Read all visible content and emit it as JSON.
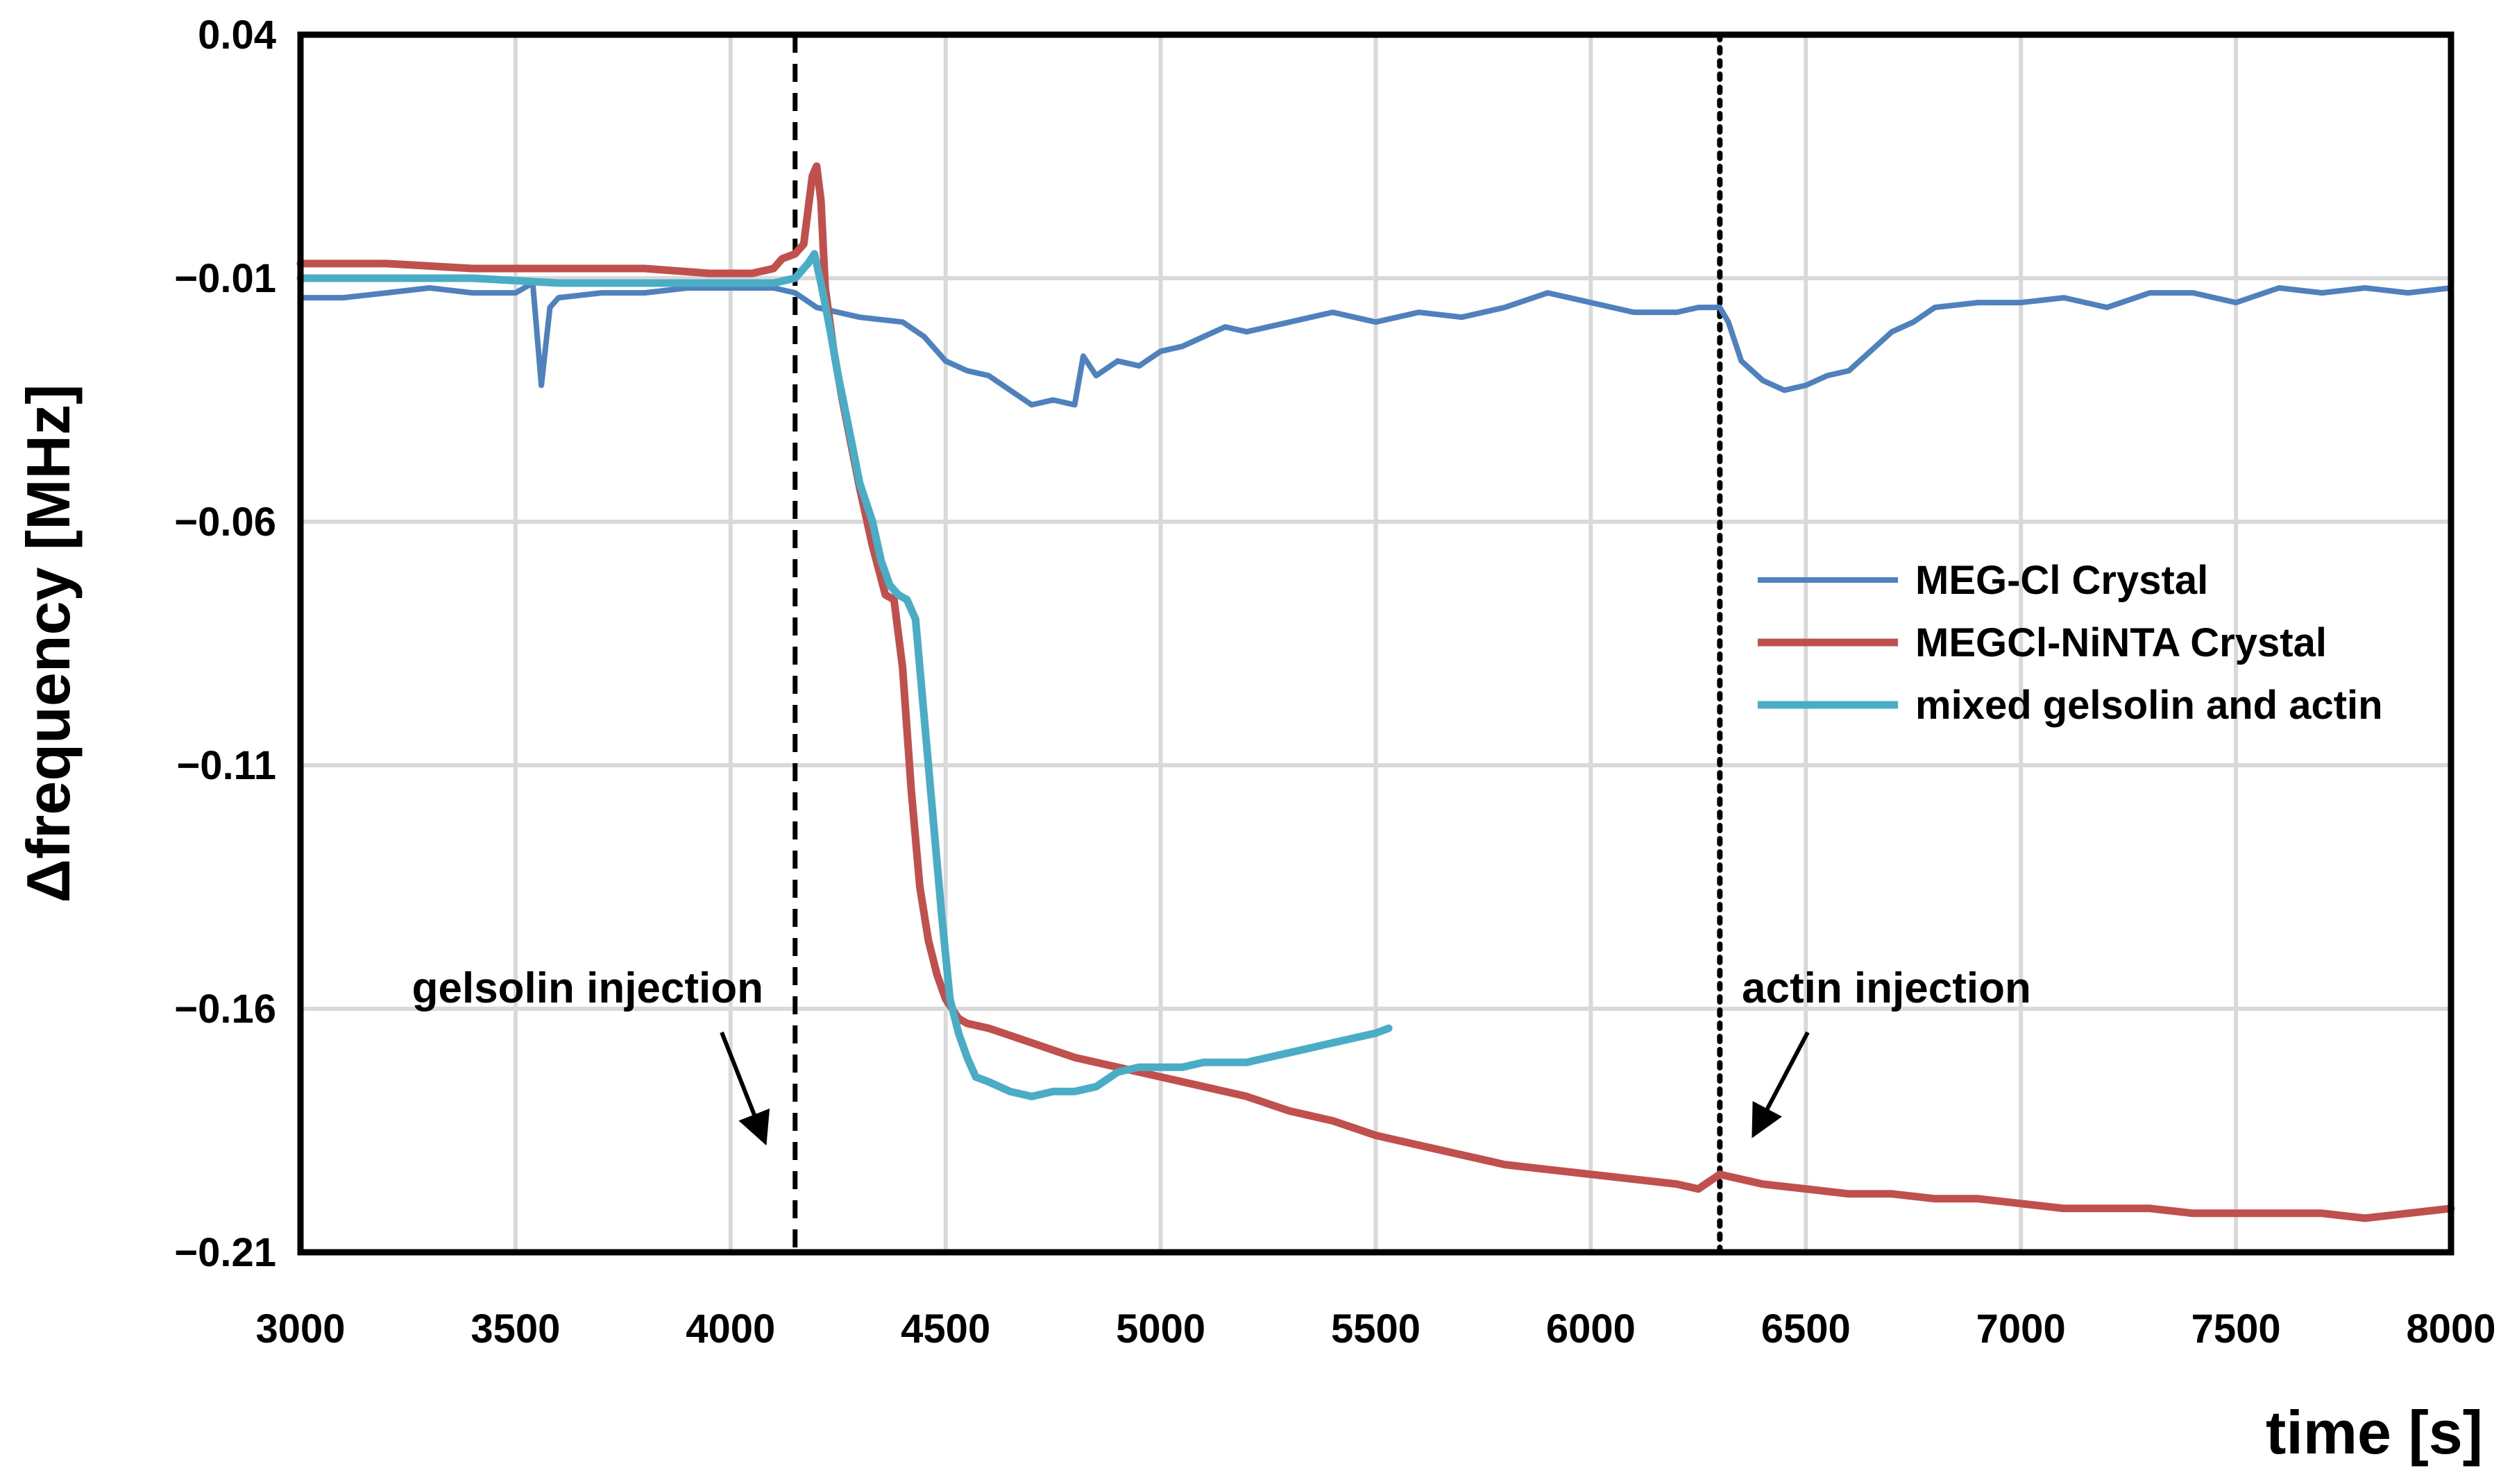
{
  "chart_data": {
    "type": "line",
    "title": "",
    "xlabel": "time [s]",
    "ylabel": "Δfrequency [MHz]",
    "xlim": [
      3000,
      8000
    ],
    "ylim": [
      -0.21,
      0.04
    ],
    "xticks": [
      3000,
      3500,
      4000,
      4500,
      5000,
      5500,
      6000,
      6500,
      7000,
      7500,
      8000
    ],
    "xtick_labels": [
      "3000",
      "3500",
      "4000",
      "4500",
      "5000",
      "5500",
      "6000",
      "6500",
      "7000",
      "7500",
      "8000"
    ],
    "yticks": [
      0.04,
      -0.01,
      -0.06,
      -0.11,
      -0.16,
      -0.21
    ],
    "ytick_labels": [
      "0.04",
      "-0.01",
      "-0.06",
      "-0.11",
      "-0.16",
      "-0.21"
    ],
    "grid": true,
    "legend_position": "center-right",
    "series": [
      {
        "name": "MEG-Cl Crystal",
        "color": "#4F81BD",
        "x": [
          3000,
          3100,
          3200,
          3300,
          3400,
          3500,
          3540,
          3560,
          3580,
          3600,
          3700,
          3800,
          3900,
          4000,
          4100,
          4150,
          4200,
          4300,
          4400,
          4450,
          4500,
          4550,
          4600,
          4650,
          4700,
          4750,
          4800,
          4820,
          4850,
          4900,
          4950,
          5000,
          5050,
          5100,
          5150,
          5200,
          5300,
          5400,
          5450,
          5500,
          5550,
          5600,
          5700,
          5800,
          5900,
          6000,
          6100,
          6200,
          6250,
          6300,
          6320,
          6350,
          6400,
          6450,
          6500,
          6550,
          6600,
          6650,
          6700,
          6750,
          6800,
          6900,
          7000,
          7100,
          7200,
          7300,
          7400,
          7500,
          7600,
          7700,
          7800,
          7900,
          8000
        ],
        "values": [
          -0.014,
          -0.014,
          -0.013,
          -0.012,
          -0.013,
          -0.013,
          -0.011,
          -0.032,
          -0.016,
          -0.014,
          -0.013,
          -0.013,
          -0.012,
          -0.012,
          -0.012,
          -0.013,
          -0.016,
          -0.018,
          -0.019,
          -0.022,
          -0.027,
          -0.029,
          -0.03,
          -0.033,
          -0.036,
          -0.035,
          -0.036,
          -0.026,
          -0.03,
          -0.027,
          -0.028,
          -0.025,
          -0.024,
          -0.022,
          -0.02,
          -0.021,
          -0.019,
          -0.017,
          -0.018,
          -0.019,
          -0.018,
          -0.017,
          -0.018,
          -0.016,
          -0.013,
          -0.015,
          -0.017,
          -0.017,
          -0.016,
          -0.016,
          -0.019,
          -0.027,
          -0.031,
          -0.033,
          -0.032,
          -0.03,
          -0.029,
          -0.025,
          -0.021,
          -0.019,
          -0.016,
          -0.015,
          -0.015,
          -0.014,
          -0.016,
          -0.013,
          -0.013,
          -0.015,
          -0.012,
          -0.013,
          -0.012,
          -0.013,
          -0.012
        ]
      },
      {
        "name": "MEGCl-NiNTA Crystal",
        "color": "#C0504D",
        "x": [
          3000,
          3200,
          3400,
          3600,
          3800,
          3950,
          4050,
          4100,
          4120,
          4150,
          4170,
          4190,
          4200,
          4210,
          4220,
          4240,
          4260,
          4280,
          4300,
          4330,
          4360,
          4380,
          4400,
          4420,
          4440,
          4460,
          4480,
          4500,
          4530,
          4550,
          4600,
          4700,
          4800,
          4900,
          5000,
          5100,
          5200,
          5300,
          5400,
          5500,
          5600,
          5700,
          5800,
          5900,
          6000,
          6100,
          6200,
          6250,
          6300,
          6400,
          6500,
          6600,
          6700,
          6800,
          6900,
          7000,
          7100,
          7200,
          7300,
          7400,
          7500,
          7600,
          7700,
          7800,
          7900,
          8000
        ],
        "values": [
          -0.007,
          -0.007,
          -0.008,
          -0.008,
          -0.008,
          -0.009,
          -0.009,
          -0.008,
          -0.006,
          -0.005,
          -0.003,
          0.011,
          0.013,
          0.006,
          -0.012,
          -0.025,
          -0.035,
          -0.044,
          -0.053,
          -0.065,
          -0.075,
          -0.076,
          -0.09,
          -0.115,
          -0.135,
          -0.146,
          -0.153,
          -0.158,
          -0.162,
          -0.163,
          -0.164,
          -0.167,
          -0.17,
          -0.172,
          -0.174,
          -0.176,
          -0.178,
          -0.181,
          -0.183,
          -0.186,
          -0.188,
          -0.19,
          -0.192,
          -0.193,
          -0.194,
          -0.195,
          -0.196,
          -0.197,
          -0.194,
          -0.196,
          -0.197,
          -0.198,
          -0.198,
          -0.199,
          -0.199,
          -0.2,
          -0.201,
          -0.201,
          -0.201,
          -0.202,
          -0.202,
          -0.202,
          -0.202,
          -0.203,
          -0.202,
          -0.201
        ]
      },
      {
        "name": "mixed gelsolin and actin",
        "color": "#4BACC6",
        "x": [
          3000,
          3200,
          3400,
          3600,
          3800,
          4000,
          4100,
          4150,
          4180,
          4195,
          4210,
          4230,
          4250,
          4280,
          4300,
          4330,
          4350,
          4370,
          4390,
          4410,
          4430,
          4450,
          4470,
          4490,
          4510,
          4530,
          4550,
          4570,
          4600,
          4650,
          4700,
          4750,
          4800,
          4850,
          4900,
          4950,
          5000,
          5050,
          5100,
          5150,
          5200,
          5250,
          5300,
          5350,
          5400,
          5450,
          5500,
          5530
        ],
        "values": [
          -0.01,
          -0.01,
          -0.01,
          -0.011,
          -0.011,
          -0.011,
          -0.011,
          -0.01,
          -0.007,
          -0.005,
          -0.011,
          -0.02,
          -0.03,
          -0.043,
          -0.052,
          -0.06,
          -0.068,
          -0.073,
          -0.075,
          -0.076,
          -0.08,
          -0.1,
          -0.12,
          -0.14,
          -0.158,
          -0.165,
          -0.17,
          -0.174,
          -0.175,
          -0.177,
          -0.178,
          -0.177,
          -0.177,
          -0.176,
          -0.173,
          -0.172,
          -0.172,
          -0.172,
          -0.171,
          -0.171,
          -0.171,
          -0.17,
          -0.169,
          -0.168,
          -0.167,
          -0.166,
          -0.165,
          -0.164
        ]
      }
    ],
    "vlines": [
      {
        "x": 4150,
        "style": "dashed"
      },
      {
        "x": 6300,
        "style": "dotted"
      }
    ],
    "annotations": [
      {
        "text": "gelsolin injection",
        "arrow_from": [
          4100,
          -0.164
        ],
        "arrow_to": [
          4180,
          -0.18
        ]
      },
      {
        "text": "actin injection",
        "arrow_from": [
          6350,
          -0.164
        ],
        "arrow_to": [
          6290,
          -0.19
        ]
      }
    ]
  }
}
